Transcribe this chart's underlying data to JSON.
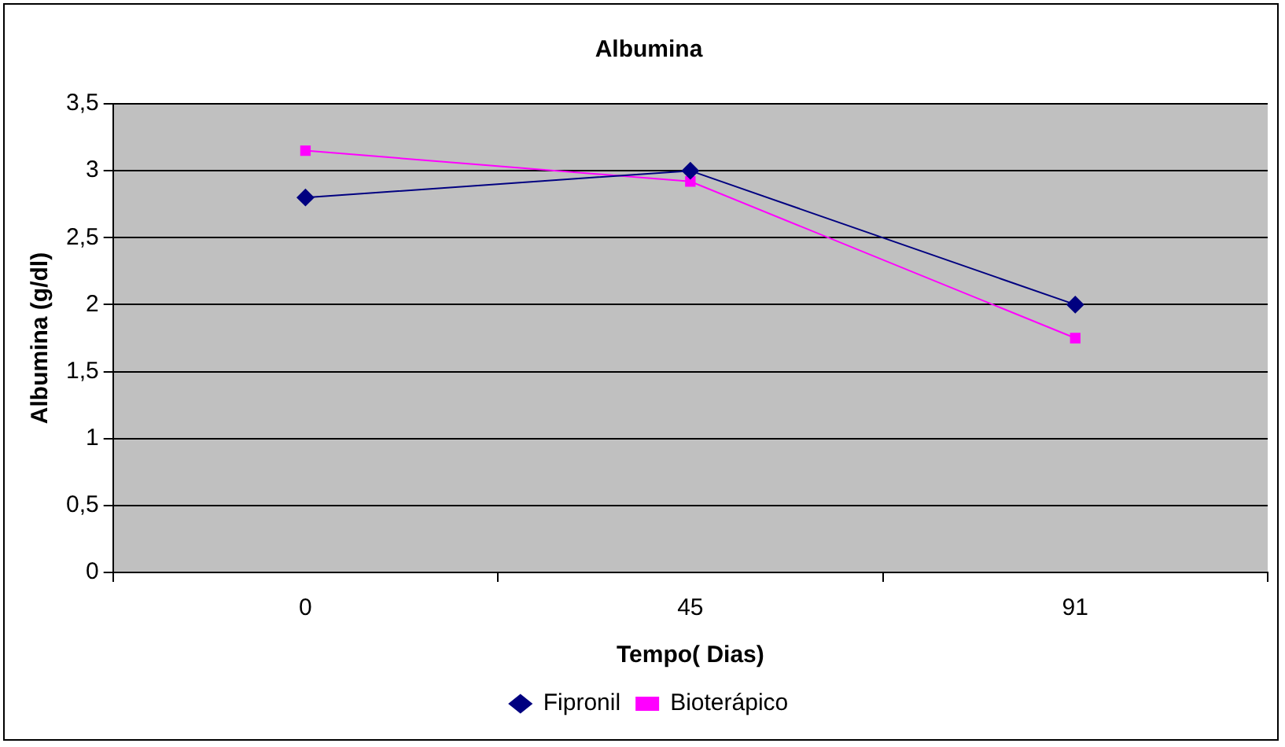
{
  "chart_data": {
    "type": "line",
    "title": "Albumina",
    "xlabel": "Tempo( Dias)",
    "ylabel": "Albumina (g/dl)",
    "categories": [
      "0",
      "45",
      "91"
    ],
    "series": [
      {
        "name": "Fipronil",
        "color": "#000080",
        "marker": "diamond",
        "values": [
          2.8,
          3.0,
          2.0
        ]
      },
      {
        "name": "Bioterápico",
        "color": "#ff00ff",
        "marker": "square",
        "values": [
          3.15,
          2.92,
          1.75
        ]
      }
    ],
    "ylim": [
      0,
      3.5
    ],
    "yticks": [
      {
        "value": 0,
        "label": "0"
      },
      {
        "value": 0.5,
        "label": "0,5"
      },
      {
        "value": 1,
        "label": "1"
      },
      {
        "value": 1.5,
        "label": "1,5"
      },
      {
        "value": 2,
        "label": "2"
      },
      {
        "value": 2.5,
        "label": "2,5"
      },
      {
        "value": 3,
        "label": "3"
      },
      {
        "value": 3.5,
        "label": "3,5"
      }
    ],
    "grid": "y",
    "legend": "bottom",
    "line_style": "solid"
  }
}
